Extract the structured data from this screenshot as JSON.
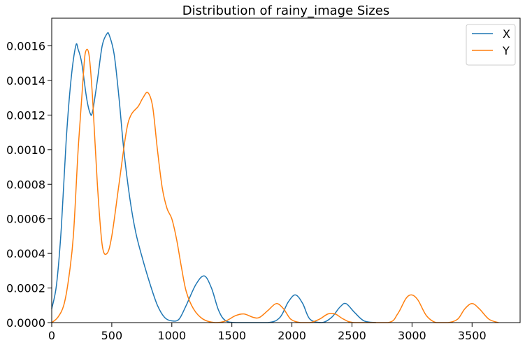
{
  "chart_data": {
    "type": "line",
    "title": "Distribution of rainy_image Sizes",
    "xlabel": "",
    "ylabel": "",
    "xlim": [
      0,
      3900
    ],
    "ylim": [
      0,
      0.00176
    ],
    "x_ticks": [
      0,
      500,
      1000,
      1500,
      2000,
      2500,
      3000,
      3500
    ],
    "x_tick_labels": [
      "0",
      "500",
      "1000",
      "1500",
      "2000",
      "2500",
      "3000",
      "3500"
    ],
    "y_ticks": [
      0,
      0.0002,
      0.0004,
      0.0006,
      0.0008,
      0.001,
      0.0012,
      0.0014,
      0.0016
    ],
    "y_tick_labels": [
      "0.0000",
      "0.0002",
      "0.0004",
      "0.0006",
      "0.0008",
      "0.0010",
      "0.0012",
      "0.0014",
      "0.0016"
    ],
    "grid": false,
    "legend_position": "top-right",
    "series": [
      {
        "name": "X",
        "color": "#1f77b4",
        "points": [
          [
            0,
            8e-05
          ],
          [
            40,
            0.00022
          ],
          [
            80,
            0.00055
          ],
          [
            120,
            0.00105
          ],
          [
            160,
            0.0014
          ],
          [
            200,
            0.0016
          ],
          [
            220,
            0.00158
          ],
          [
            250,
            0.0015
          ],
          [
            290,
            0.0013
          ],
          [
            320,
            0.00121
          ],
          [
            340,
            0.00122
          ],
          [
            380,
            0.0014
          ],
          [
            420,
            0.0016
          ],
          [
            460,
            0.00167
          ],
          [
            480,
            0.00166
          ],
          [
            520,
            0.00155
          ],
          [
            560,
            0.0013
          ],
          [
            600,
            0.001
          ],
          [
            650,
            0.00072
          ],
          [
            700,
            0.00052
          ],
          [
            760,
            0.00036
          ],
          [
            820,
            0.00022
          ],
          [
            880,
            0.0001
          ],
          [
            940,
            3e-05
          ],
          [
            1000,
            1e-05
          ],
          [
            1060,
            2e-05
          ],
          [
            1120,
            0.0001
          ],
          [
            1200,
            0.00022
          ],
          [
            1270,
            0.00027
          ],
          [
            1330,
            0.0002
          ],
          [
            1390,
            7e-05
          ],
          [
            1450,
            1e-05
          ],
          [
            1550,
            0.0
          ],
          [
            1800,
            0.0
          ],
          [
            1900,
            3e-05
          ],
          [
            1970,
            0.00012
          ],
          [
            2030,
            0.00016
          ],
          [
            2090,
            0.00011
          ],
          [
            2150,
            2e-05
          ],
          [
            2250,
            0.0
          ],
          [
            2330,
            3e-05
          ],
          [
            2400,
            9e-05
          ],
          [
            2450,
            0.00011
          ],
          [
            2520,
            6e-05
          ],
          [
            2600,
            1e-05
          ],
          [
            2700,
            0.0
          ]
        ]
      },
      {
        "name": "Y",
        "color": "#ff7f0e",
        "points": [
          [
            0,
            0.0
          ],
          [
            50,
            3e-05
          ],
          [
            100,
            0.0001
          ],
          [
            140,
            0.00025
          ],
          [
            180,
            0.0005
          ],
          [
            220,
            0.001
          ],
          [
            260,
            0.0014
          ],
          [
            280,
            0.00156
          ],
          [
            310,
            0.00155
          ],
          [
            340,
            0.0013
          ],
          [
            380,
            0.0008
          ],
          [
            420,
            0.00045
          ],
          [
            460,
            0.0004
          ],
          [
            500,
            0.0005
          ],
          [
            560,
            0.0008
          ],
          [
            620,
            0.0011
          ],
          [
            660,
            0.0012
          ],
          [
            720,
            0.00125
          ],
          [
            760,
            0.0013
          ],
          [
            800,
            0.00133
          ],
          [
            840,
            0.00125
          ],
          [
            880,
            0.001
          ],
          [
            920,
            0.00078
          ],
          [
            960,
            0.00066
          ],
          [
            1000,
            0.0006
          ],
          [
            1040,
            0.00048
          ],
          [
            1080,
            0.00032
          ],
          [
            1120,
            0.00018
          ],
          [
            1180,
            8e-05
          ],
          [
            1260,
            2e-05
          ],
          [
            1360,
            0.0
          ],
          [
            1450,
            1e-05
          ],
          [
            1530,
            4e-05
          ],
          [
            1600,
            5e-05
          ],
          [
            1680,
            3e-05
          ],
          [
            1730,
            3e-05
          ],
          [
            1800,
            7e-05
          ],
          [
            1870,
            0.00011
          ],
          [
            1930,
            8e-05
          ],
          [
            1990,
            2e-05
          ],
          [
            2070,
            0.0
          ],
          [
            2150,
            0.0
          ],
          [
            2230,
            2e-05
          ],
          [
            2300,
            5e-05
          ],
          [
            2360,
            5e-05
          ],
          [
            2430,
            2e-05
          ],
          [
            2520,
            0.0
          ],
          [
            2800,
            0.0
          ],
          [
            2880,
            5e-05
          ],
          [
            2950,
            0.00014
          ],
          [
            3000,
            0.00016
          ],
          [
            3050,
            0.00013
          ],
          [
            3120,
            4e-05
          ],
          [
            3200,
            0.0
          ],
          [
            3300,
            0.0
          ],
          [
            3380,
            2e-05
          ],
          [
            3440,
            8e-05
          ],
          [
            3500,
            0.00011
          ],
          [
            3560,
            8e-05
          ],
          [
            3640,
            2e-05
          ],
          [
            3720,
            0.0
          ]
        ]
      }
    ]
  }
}
